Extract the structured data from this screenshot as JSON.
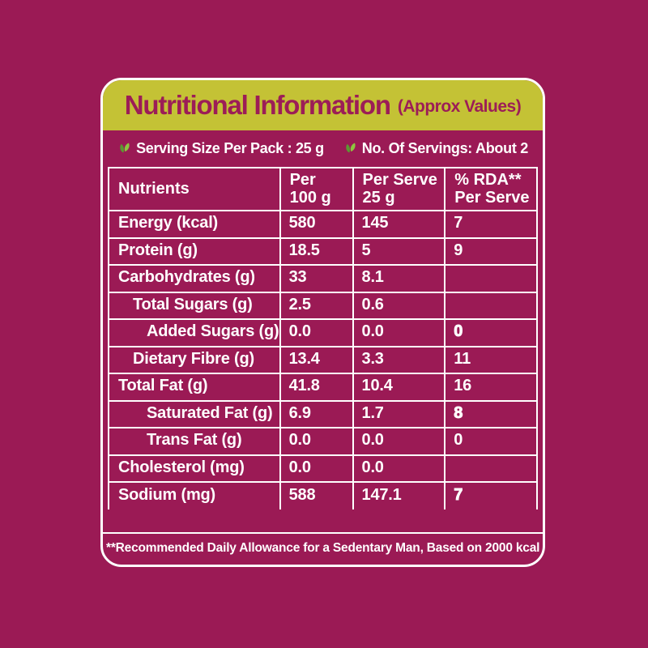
{
  "colors": {
    "background": "#9B1A55",
    "header_bg": "#C4C235",
    "header_text": "#9C1D57",
    "text": "#FFFFFF",
    "leaf_light": "#8DC63F",
    "leaf_dark": "#5C9732"
  },
  "title": {
    "main": "Nutritional Information",
    "suffix": "(Approx Values)"
  },
  "serving": {
    "size_label": "Serving Size Per Pack : 25 g",
    "count_label": "No. Of Servings: About 2"
  },
  "table": {
    "headers": {
      "nutrients": "Nutrients",
      "per_100g_line1": "Per",
      "per_100g_line2": "100 g",
      "per_serve_line1": "Per Serve",
      "per_serve_line2": "25 g",
      "rda_line1": "% RDA**",
      "rda_line2": "Per Serve"
    },
    "rows": [
      {
        "label": "Energy (kcal)",
        "indent": 0,
        "per_100g": "580",
        "per_serve": "145",
        "rda": "7",
        "rda_bold": false
      },
      {
        "label": "Protein (g)",
        "indent": 0,
        "per_100g": "18.5",
        "per_serve": "5",
        "rda": "9",
        "rda_bold": false
      },
      {
        "label": "Carbohydrates (g)",
        "indent": 0,
        "per_100g": "33",
        "per_serve": "8.1",
        "rda": "",
        "rda_bold": false
      },
      {
        "label": "Total Sugars (g)",
        "indent": 1,
        "per_100g": "2.5",
        "per_serve": "0.6",
        "rda": "",
        "rda_bold": false
      },
      {
        "label": "Added Sugars (g)",
        "indent": 2,
        "per_100g": "0.0",
        "per_serve": "0.0",
        "rda": "0",
        "rda_bold": true
      },
      {
        "label": "Dietary Fibre (g)",
        "indent": 1,
        "per_100g": "13.4",
        "per_serve": "3.3",
        "rda": "11",
        "rda_bold": false
      },
      {
        "label": "Total Fat (g)",
        "indent": 0,
        "per_100g": "41.8",
        "per_serve": "10.4",
        "rda": "16",
        "rda_bold": false
      },
      {
        "label": "Saturated Fat (g)",
        "indent": 2,
        "per_100g": "6.9",
        "per_serve": "1.7",
        "rda": "8",
        "rda_bold": true
      },
      {
        "label": "Trans Fat (g)",
        "indent": 2,
        "per_100g": "0.0",
        "per_serve": "0.0",
        "rda": "0",
        "rda_bold": false
      },
      {
        "label": "Cholesterol (mg)",
        "indent": 0,
        "per_100g": "0.0",
        "per_serve": "0.0",
        "rda": "",
        "rda_bold": false
      },
      {
        "label": "Sodium (mg)",
        "indent": 0,
        "per_100g": "588",
        "per_serve": "147.1",
        "rda": "7",
        "rda_bold": true
      }
    ]
  },
  "footnote": "**Recommended Daily Allowance for a Sedentary Man, Based on 2000 kcal Diet"
}
